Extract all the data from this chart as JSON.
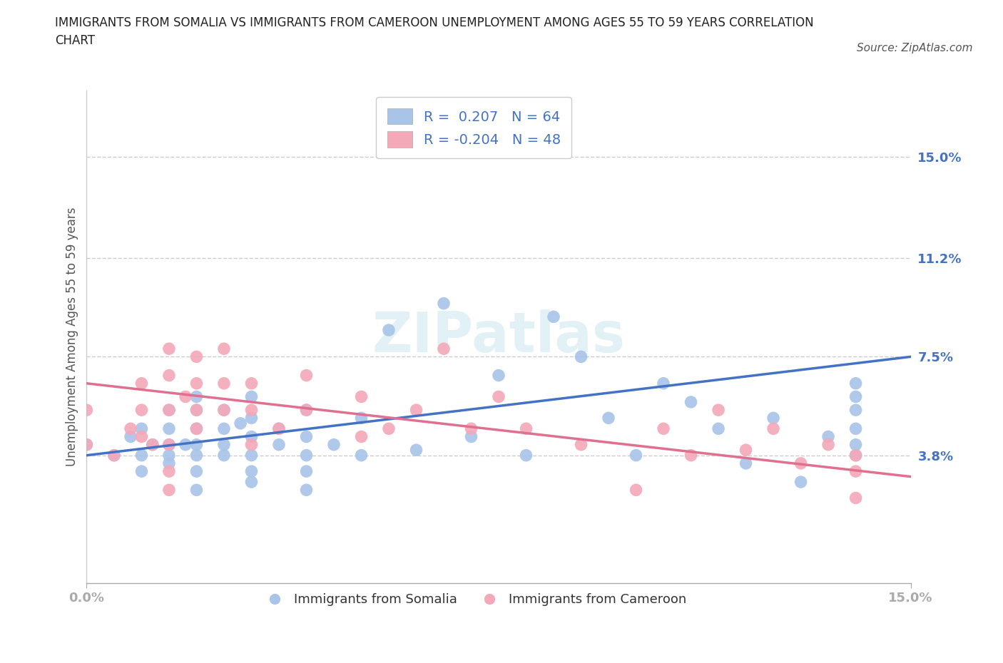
{
  "title": "IMMIGRANTS FROM SOMALIA VS IMMIGRANTS FROM CAMEROON UNEMPLOYMENT AMONG AGES 55 TO 59 YEARS CORRELATION\nCHART",
  "source": "Source: ZipAtlas.com",
  "ylabel": "Unemployment Among Ages 55 to 59 years",
  "ytick_labels": [
    "3.8%",
    "7.5%",
    "11.2%",
    "15.0%"
  ],
  "ytick_values": [
    0.038,
    0.075,
    0.112,
    0.15
  ],
  "xlim": [
    0.0,
    0.15
  ],
  "ylim": [
    -0.01,
    0.175
  ],
  "somalia_color": "#a8c4e8",
  "cameroon_color": "#f4a8b8",
  "somalia_line_color": "#4472c4",
  "cameroon_line_color": "#e07090",
  "R_somalia": 0.207,
  "N_somalia": 64,
  "R_cameroon": -0.204,
  "N_cameroon": 48,
  "somalia_line_x0": 0.0,
  "somalia_line_y0": 0.038,
  "somalia_line_x1": 0.15,
  "somalia_line_y1": 0.075,
  "cameroon_line_x0": 0.0,
  "cameroon_line_y0": 0.065,
  "cameroon_line_x1": 0.15,
  "cameroon_line_y1": 0.03,
  "somalia_x": [
    0.0,
    0.005,
    0.008,
    0.01,
    0.01,
    0.01,
    0.012,
    0.015,
    0.015,
    0.015,
    0.015,
    0.015,
    0.018,
    0.02,
    0.02,
    0.02,
    0.02,
    0.02,
    0.02,
    0.02,
    0.025,
    0.025,
    0.025,
    0.025,
    0.028,
    0.03,
    0.03,
    0.03,
    0.03,
    0.03,
    0.03,
    0.035,
    0.035,
    0.04,
    0.04,
    0.04,
    0.04,
    0.04,
    0.045,
    0.05,
    0.05,
    0.055,
    0.06,
    0.065,
    0.07,
    0.075,
    0.08,
    0.085,
    0.09,
    0.095,
    0.1,
    0.105,
    0.11,
    0.115,
    0.12,
    0.125,
    0.13,
    0.135,
    0.14,
    0.14,
    0.14,
    0.14,
    0.14,
    0.14
  ],
  "somalia_y": [
    0.042,
    0.038,
    0.045,
    0.032,
    0.038,
    0.048,
    0.042,
    0.035,
    0.038,
    0.042,
    0.048,
    0.055,
    0.042,
    0.025,
    0.032,
    0.038,
    0.042,
    0.048,
    0.055,
    0.06,
    0.038,
    0.042,
    0.048,
    0.055,
    0.05,
    0.028,
    0.032,
    0.038,
    0.045,
    0.052,
    0.06,
    0.042,
    0.048,
    0.025,
    0.032,
    0.038,
    0.045,
    0.055,
    0.042,
    0.038,
    0.052,
    0.085,
    0.04,
    0.095,
    0.045,
    0.068,
    0.038,
    0.09,
    0.075,
    0.052,
    0.038,
    0.065,
    0.058,
    0.048,
    0.035,
    0.052,
    0.028,
    0.045,
    0.038,
    0.042,
    0.048,
    0.055,
    0.06,
    0.065
  ],
  "cameroon_x": [
    0.0,
    0.0,
    0.005,
    0.008,
    0.01,
    0.01,
    0.01,
    0.012,
    0.015,
    0.015,
    0.015,
    0.015,
    0.015,
    0.015,
    0.018,
    0.02,
    0.02,
    0.02,
    0.02,
    0.025,
    0.025,
    0.025,
    0.03,
    0.03,
    0.03,
    0.035,
    0.04,
    0.04,
    0.05,
    0.05,
    0.055,
    0.06,
    0.065,
    0.07,
    0.075,
    0.08,
    0.09,
    0.1,
    0.105,
    0.11,
    0.115,
    0.12,
    0.125,
    0.13,
    0.135,
    0.14,
    0.14,
    0.14
  ],
  "cameroon_y": [
    0.042,
    0.055,
    0.038,
    0.048,
    0.045,
    0.055,
    0.065,
    0.042,
    0.025,
    0.032,
    0.042,
    0.055,
    0.068,
    0.078,
    0.06,
    0.048,
    0.055,
    0.065,
    0.075,
    0.055,
    0.065,
    0.078,
    0.042,
    0.055,
    0.065,
    0.048,
    0.055,
    0.068,
    0.045,
    0.06,
    0.048,
    0.055,
    0.078,
    0.048,
    0.06,
    0.048,
    0.042,
    0.025,
    0.048,
    0.038,
    0.055,
    0.04,
    0.048,
    0.035,
    0.042,
    0.022,
    0.032,
    0.038
  ],
  "legend_text_somalia": "R =  0.207   N = 64",
  "legend_text_cameroon": "R = -0.204   N = 48",
  "legend_label_somalia": "Immigrants from Somalia",
  "legend_label_cameroon": "Immigrants from Cameroon"
}
